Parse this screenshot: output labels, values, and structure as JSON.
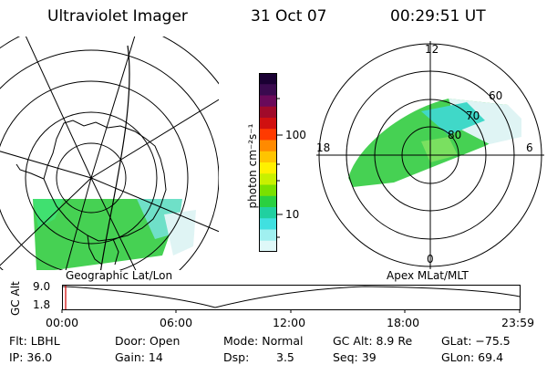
{
  "header": {
    "instrument": "Ultraviolet Imager",
    "date": "31 Oct 07",
    "time": "00:29:51 UT"
  },
  "left_panel": {
    "label": "Geographic Lat/Lon"
  },
  "right_panel": {
    "label": "Apex MLat/MLT",
    "mlt_labels": {
      "top": "12",
      "right": "6",
      "bottom": "0",
      "left": "18"
    },
    "lat_labels": [
      "60",
      "70",
      "80"
    ]
  },
  "colorbar": {
    "unit_label": "photon cm⁻²s⁻¹",
    "ticks": [
      "100",
      "10"
    ],
    "colors": [
      "#1a0033",
      "#3a0a4f",
      "#6a0a5a",
      "#a00a2a",
      "#d01010",
      "#ff3a00",
      "#ff8a00",
      "#ffc400",
      "#fff000",
      "#c8f000",
      "#7ae000",
      "#2ad040",
      "#20d0a0",
      "#40e0e0",
      "#a0f0f0",
      "#dff8f8"
    ]
  },
  "timeline": {
    "ylabel": "GC Alt",
    "y_ticks": [
      "9.0",
      "1.8"
    ],
    "x_ticks": [
      "00:00",
      "06:00",
      "12:00",
      "18:00",
      "23:59"
    ],
    "marker_color": "#d00000"
  },
  "status": {
    "filter": "Flt: LBHL",
    "ip": "IP: 36.0",
    "door": "Door: Open",
    "gain": "Gain: 14",
    "mode": "Mode: Normal",
    "dsp_label": "Dsp:",
    "dsp_value": "3.5",
    "gc_alt": "GC Alt: 8.9 Re",
    "seq": "Seq: 39",
    "glat": "GLat: −75.5",
    "glon": "GLon:  69.4"
  }
}
